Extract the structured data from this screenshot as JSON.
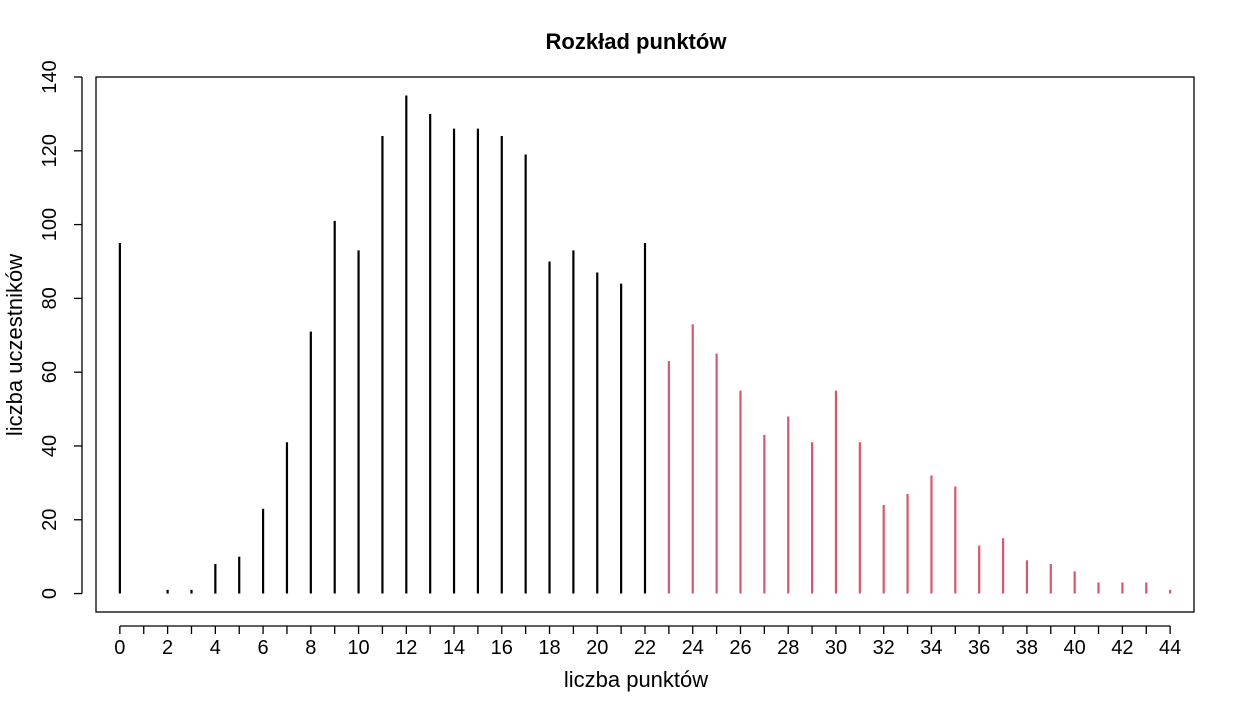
{
  "chart_data": {
    "type": "bar",
    "title": "Rozkład punktów",
    "xlabel": "liczba punktów",
    "ylabel": "liczba uczestników",
    "xlim": [
      -1,
      45
    ],
    "ylim": [
      -5,
      140
    ],
    "x_ticks": [
      0,
      2,
      4,
      6,
      8,
      10,
      12,
      14,
      16,
      18,
      20,
      22,
      24,
      26,
      28,
      30,
      32,
      34,
      36,
      38,
      40,
      42,
      44
    ],
    "y_ticks": [
      0,
      20,
      40,
      60,
      80,
      100,
      120,
      140
    ],
    "grid": false,
    "x_threshold": 23,
    "colors": {
      "below_threshold": "#000000",
      "from_threshold": "#DF536B"
    },
    "x": [
      0,
      1,
      2,
      3,
      4,
      5,
      6,
      7,
      8,
      9,
      10,
      11,
      12,
      13,
      14,
      15,
      16,
      17,
      18,
      19,
      20,
      21,
      22,
      23,
      24,
      25,
      26,
      27,
      28,
      29,
      30,
      31,
      32,
      33,
      34,
      35,
      36,
      37,
      38,
      39,
      40,
      41,
      42,
      43,
      44
    ],
    "values": [
      95,
      0,
      1,
      1,
      8,
      10,
      23,
      41,
      71,
      101,
      93,
      124,
      135,
      130,
      126,
      126,
      124,
      119,
      90,
      93,
      87,
      84,
      95,
      63,
      73,
      65,
      55,
      43,
      48,
      41,
      55,
      41,
      24,
      27,
      32,
      29,
      13,
      15,
      9,
      8,
      6,
      3,
      3,
      3,
      1
    ]
  }
}
